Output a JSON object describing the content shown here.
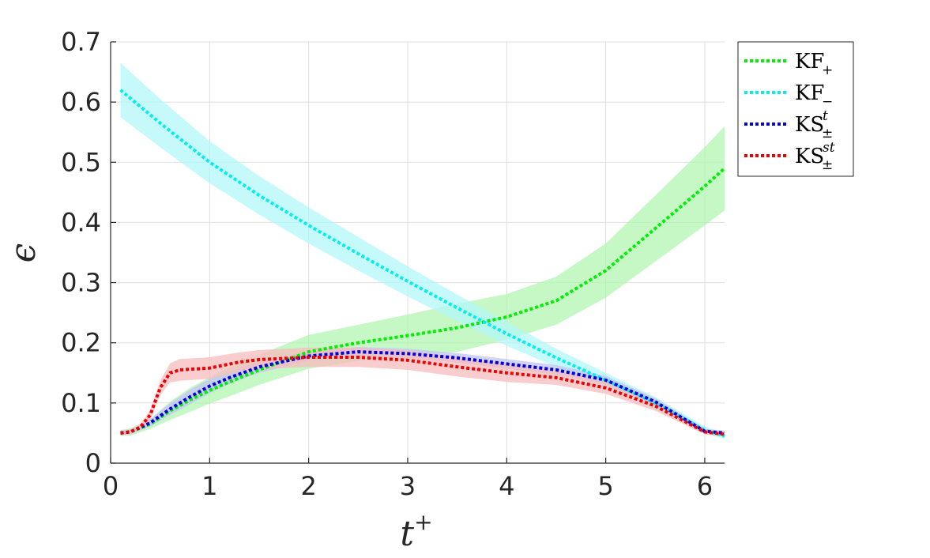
{
  "chart_data": {
    "type": "line",
    "title": "",
    "xlabel": {
      "base": "t",
      "sup": "+"
    },
    "ylabel": "ϵ",
    "xlim": [
      0,
      6.2
    ],
    "ylim": [
      0,
      0.7
    ],
    "xticks": [
      "0",
      "1",
      "2",
      "3",
      "4",
      "5",
      "6"
    ],
    "yticks": [
      "0",
      "0.1",
      "0.2",
      "0.3",
      "0.4",
      "0.5",
      "0.6",
      "0.7"
    ],
    "grid": true,
    "legend_position": "outside-top-right",
    "series": [
      {
        "name": "KF+",
        "legend": {
          "base": "KF",
          "sub": "+",
          "sup": ""
        },
        "color": "#00ee00",
        "band_color": "#b3f5b3",
        "x": [
          0.1,
          0.2,
          0.4,
          0.6,
          0.8,
          1.0,
          1.2,
          1.5,
          2.0,
          2.5,
          3.0,
          3.5,
          4.0,
          4.5,
          5.0,
          5.5,
          6.0,
          6.2
        ],
        "y": [
          0.05,
          0.052,
          0.065,
          0.087,
          0.105,
          0.121,
          0.135,
          0.155,
          0.185,
          0.2,
          0.212,
          0.225,
          0.243,
          0.27,
          0.32,
          0.39,
          0.46,
          0.49
        ],
        "band": [
          0.005,
          0.006,
          0.008,
          0.015,
          0.02,
          0.022,
          0.024,
          0.025,
          0.028,
          0.03,
          0.035,
          0.04,
          0.038,
          0.04,
          0.045,
          0.055,
          0.065,
          0.07
        ]
      },
      {
        "name": "KF−",
        "legend": {
          "base": "KF",
          "sub": "−",
          "sup": ""
        },
        "color": "#00eeee",
        "band_color": "#b3f7f7",
        "x": [
          0.1,
          0.5,
          1.0,
          1.5,
          2.0,
          2.5,
          3.0,
          3.5,
          4.0,
          4.5,
          5.0,
          5.5,
          6.0,
          6.2
        ],
        "y": [
          0.62,
          0.565,
          0.5,
          0.445,
          0.395,
          0.348,
          0.302,
          0.258,
          0.215,
          0.175,
          0.138,
          0.1,
          0.055,
          0.045
        ],
        "band": [
          0.045,
          0.04,
          0.035,
          0.032,
          0.03,
          0.028,
          0.025,
          0.022,
          0.02,
          0.015,
          0.012,
          0.01,
          0.006,
          0.005
        ]
      },
      {
        "name": "KS±^t",
        "legend": {
          "base": "KS",
          "sub": "±",
          "sup": "t"
        },
        "color": "#0000dd",
        "band_color": "#c4c4f5",
        "x": [
          0.1,
          0.2,
          0.4,
          0.6,
          0.8,
          1.0,
          1.2,
          1.5,
          2.0,
          2.5,
          3.0,
          3.5,
          4.0,
          4.5,
          5.0,
          5.5,
          6.0,
          6.2
        ],
        "y": [
          0.05,
          0.052,
          0.067,
          0.09,
          0.11,
          0.128,
          0.142,
          0.16,
          0.178,
          0.185,
          0.182,
          0.175,
          0.165,
          0.155,
          0.138,
          0.102,
          0.053,
          0.05
        ],
        "band": [
          0.004,
          0.004,
          0.006,
          0.01,
          0.012,
          0.012,
          0.01,
          0.01,
          0.008,
          0.008,
          0.008,
          0.008,
          0.008,
          0.008,
          0.007,
          0.006,
          0.004,
          0.004
        ]
      },
      {
        "name": "KS±^st",
        "legend": {
          "base": "KS",
          "sub": "±",
          "sup": "st"
        },
        "color": "#ee0000",
        "band_color": "#f7bcbc",
        "x": [
          0.1,
          0.2,
          0.3,
          0.4,
          0.5,
          0.6,
          0.7,
          1.0,
          1.3,
          1.5,
          2.0,
          2.5,
          3.0,
          3.5,
          4.0,
          4.5,
          5.0,
          5.5,
          6.0,
          6.2
        ],
        "y": [
          0.05,
          0.052,
          0.06,
          0.08,
          0.125,
          0.15,
          0.155,
          0.158,
          0.168,
          0.172,
          0.176,
          0.176,
          0.171,
          0.16,
          0.15,
          0.142,
          0.125,
          0.095,
          0.052,
          0.048
        ],
        "band": [
          0.003,
          0.003,
          0.005,
          0.008,
          0.012,
          0.016,
          0.018,
          0.018,
          0.016,
          0.016,
          0.016,
          0.016,
          0.016,
          0.016,
          0.015,
          0.012,
          0.01,
          0.008,
          0.004,
          0.004
        ]
      }
    ]
  }
}
